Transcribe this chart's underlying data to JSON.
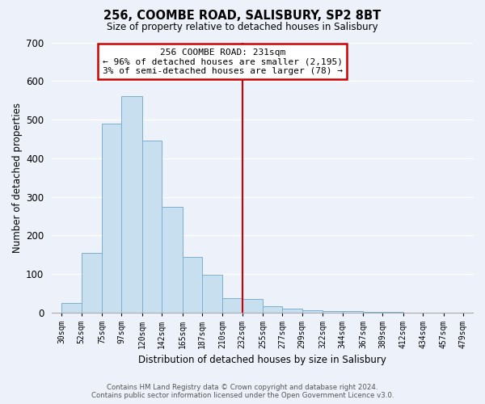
{
  "title": "256, COOMBE ROAD, SALISBURY, SP2 8BT",
  "subtitle": "Size of property relative to detached houses in Salisbury",
  "xlabel": "Distribution of detached houses by size in Salisbury",
  "ylabel": "Number of detached properties",
  "bin_labels": [
    "30sqm",
    "52sqm",
    "75sqm",
    "97sqm",
    "120sqm",
    "142sqm",
    "165sqm",
    "187sqm",
    "210sqm",
    "232sqm",
    "255sqm",
    "277sqm",
    "299sqm",
    "322sqm",
    "344sqm",
    "367sqm",
    "389sqm",
    "412sqm",
    "434sqm",
    "457sqm",
    "479sqm"
  ],
  "bar_heights": [
    25,
    155,
    490,
    560,
    445,
    275,
    145,
    98,
    37,
    35,
    17,
    11,
    7,
    5,
    3,
    2,
    1,
    0,
    0,
    0,
    2
  ],
  "bar_color": "#c8dff0",
  "bar_edge_color": "#7ab0d4",
  "vline_color": "#cc0000",
  "annotation_title": "256 COOMBE ROAD: 231sqm",
  "annotation_line1": "← 96% of detached houses are smaller (2,195)",
  "annotation_line2": "3% of semi-detached houses are larger (78) →",
  "annotation_box_color": "#ffffff",
  "annotation_box_edge": "#cc0000",
  "ylim": [
    0,
    700
  ],
  "yticks": [
    0,
    100,
    200,
    300,
    400,
    500,
    600,
    700
  ],
  "footer_line1": "Contains HM Land Registry data © Crown copyright and database right 2024.",
  "footer_line2": "Contains public sector information licensed under the Open Government Licence v3.0.",
  "background_color": "#edf1fa",
  "grid_color": "#ffffff"
}
